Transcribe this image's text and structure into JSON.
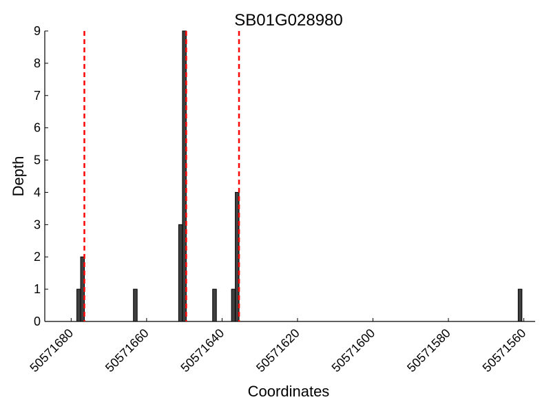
{
  "chart_data": {
    "type": "bar",
    "title": "SB01G028980",
    "xlabel": "Coordinates",
    "ylabel": "Depth",
    "x_axis_reversed": true,
    "xlim": [
      50571687,
      50571557
    ],
    "ylim": [
      0,
      9
    ],
    "xticks": [
      50571680,
      50571660,
      50571640,
      50571620,
      50571600,
      50571580,
      50571560
    ],
    "yticks": [
      0,
      1,
      2,
      3,
      4,
      5,
      6,
      7,
      8,
      9
    ],
    "bars": [
      {
        "x": 50571678,
        "value": 1
      },
      {
        "x": 50571677,
        "value": 2
      },
      {
        "x": 50571663,
        "value": 1
      },
      {
        "x": 50571651,
        "value": 3
      },
      {
        "x": 50571650,
        "value": 9
      },
      {
        "x": 50571642,
        "value": 1
      },
      {
        "x": 50571637,
        "value": 1
      },
      {
        "x": 50571636,
        "value": 4
      },
      {
        "x": 50571561,
        "value": 1
      }
    ],
    "reference_lines": [
      50571676.5,
      50571649.5,
      50571635.5
    ],
    "bar_color": "#404040",
    "reference_line_color": "#ff0000",
    "grid": false
  }
}
